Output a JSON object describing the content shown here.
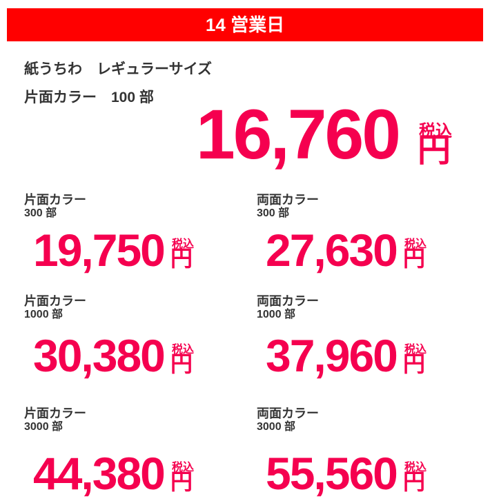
{
  "header": {
    "title": "14 営業日"
  },
  "main": {
    "product": "紙うちわ　レギュラーサイズ",
    "spec": "片面カラー　100 部",
    "price": "16,760",
    "tax": "税込",
    "yen": "円"
  },
  "options": [
    {
      "label": "片面カラー",
      "qty": "300 部",
      "price": "19,750",
      "tax": "税込",
      "yen": "円"
    },
    {
      "label": "両面カラー",
      "qty": "300 部",
      "price": "27,630",
      "tax": "税込",
      "yen": "円"
    },
    {
      "label": "片面カラー",
      "qty": "1000 部",
      "price": "30,380",
      "tax": "税込",
      "yen": "円"
    },
    {
      "label": "両面カラー",
      "qty": "1000 部",
      "price": "37,960",
      "tax": "税込",
      "yen": "円"
    },
    {
      "label": "片面カラー",
      "qty": "3000 部",
      "price": "44,380",
      "tax": "税込",
      "yen": "円"
    },
    {
      "label": "両面カラー",
      "qty": "3000 部",
      "price": "55,560",
      "tax": "税込",
      "yen": "円"
    }
  ]
}
